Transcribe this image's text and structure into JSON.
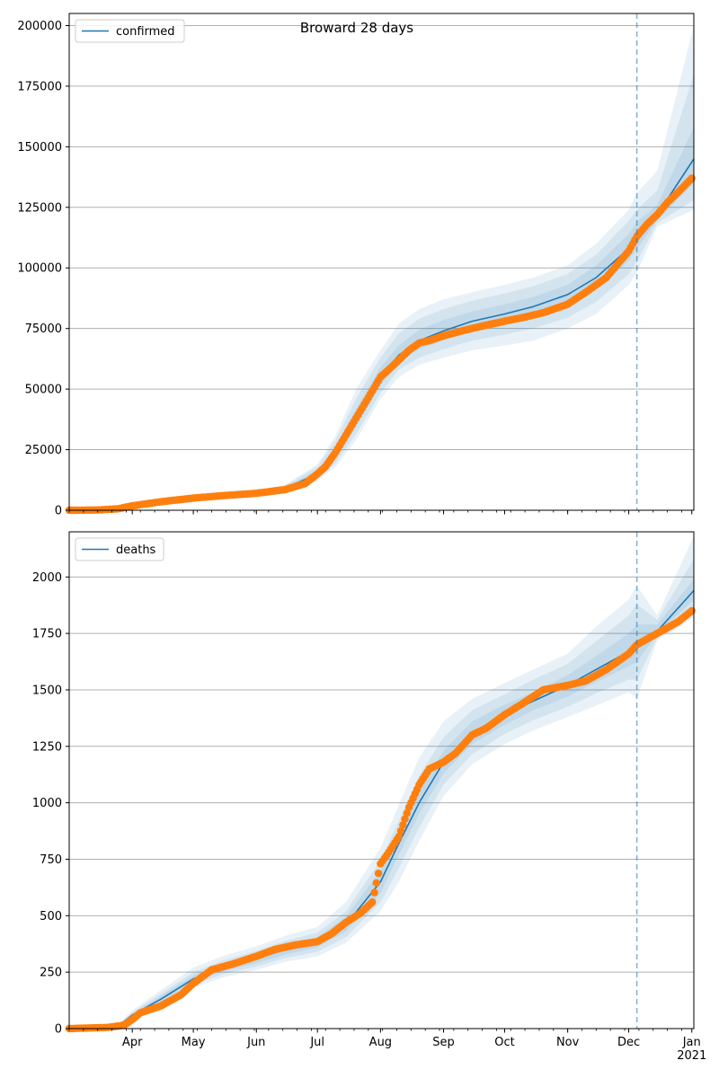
{
  "figure": {
    "title": "Broward 28 days"
  },
  "colors": {
    "model": "#1f77b4",
    "observed": "#ff7f0e",
    "band": "#1f77b4",
    "grid": "#b0b0b0",
    "forecast_line": "#1f77b4"
  },
  "chart_data": [
    {
      "type": "line",
      "title": "Broward 28 days",
      "legend": {
        "label": "confirmed",
        "placement": "top-left"
      },
      "xlabel": "",
      "ylabel": "",
      "x_range": [
        "2020-03-01",
        "2021-01-02"
      ],
      "ylim": [
        0,
        205000
      ],
      "yticks": [
        0,
        25000,
        50000,
        75000,
        100000,
        125000,
        150000,
        175000,
        200000
      ],
      "ytick_labels": [
        "0",
        "25000",
        "50000",
        "75000",
        "100000",
        "125000",
        "150000",
        "175000",
        "200000"
      ],
      "grid": "horizontal",
      "forecast_start": "2020-12-05",
      "model_mean": {
        "x": [
          "2020-03-01",
          "2020-03-20",
          "2020-04-01",
          "2020-04-15",
          "2020-05-01",
          "2020-05-15",
          "2020-06-01",
          "2020-06-15",
          "2020-07-01",
          "2020-07-10",
          "2020-07-20",
          "2020-08-01",
          "2020-08-10",
          "2020-08-20",
          "2020-09-01",
          "2020-09-15",
          "2020-10-01",
          "2020-10-15",
          "2020-11-01",
          "2020-11-15",
          "2020-12-01",
          "2020-12-05",
          "2020-12-15",
          "2021-01-02"
        ],
        "y": [
          0,
          300,
          2000,
          3500,
          5000,
          6000,
          7000,
          9000,
          15000,
          24000,
          38000,
          55000,
          64000,
          70000,
          74000,
          78000,
          81000,
          84000,
          89000,
          96000,
          108000,
          113000,
          122000,
          145000
        ]
      },
      "bands": [
        {
          "lower": [
            0,
            100,
            1500,
            2800,
            4200,
            5200,
            6200,
            7800,
            12000,
            18000,
            29000,
            46000,
            55000,
            60000,
            63000,
            66000,
            68000,
            70000,
            75000,
            81000,
            93000,
            98000,
            117000,
            124000
          ],
          "upper": [
            0,
            600,
            2600,
            4200,
            5900,
            7000,
            8200,
            10500,
            19000,
            31000,
            50000,
            66000,
            77000,
            83000,
            87000,
            90000,
            93000,
            96000,
            101000,
            110000,
            124000,
            131000,
            140000,
            200000
          ]
        },
        {
          "lower": [
            0,
            150,
            1650,
            3000,
            4450,
            5450,
            6450,
            8100,
            12800,
            19500,
            31500,
            48500,
            58000,
            63000,
            66500,
            70000,
            72500,
            75000,
            79500,
            86000,
            97500,
            102500,
            118500,
            128000
          ],
          "upper": [
            0,
            500,
            2450,
            4000,
            5600,
            6700,
            7800,
            10000,
            18000,
            29000,
            46000,
            63000,
            73000,
            79000,
            83000,
            86500,
            89500,
            92500,
            97500,
            105500,
            119500,
            124000,
            132000,
            180000
          ]
        },
        {
          "lower": [
            0,
            200,
            1800,
            3200,
            4700,
            5700,
            6700,
            8500,
            13800,
            21500,
            34500,
            51500,
            61000,
            66500,
            70000,
            74000,
            77000,
            80000,
            84500,
            91000,
            103000,
            108000,
            119500,
            135000
          ],
          "upper": [
            0,
            400,
            2250,
            3800,
            5300,
            6350,
            7400,
            9500,
            16500,
            26500,
            42000,
            59000,
            68000,
            74500,
            78500,
            82000,
            85000,
            88000,
            93000,
            101000,
            114000,
            119000,
            126000,
            158000
          ]
        }
      ],
      "observed": {
        "x": [
          "2020-03-01",
          "2020-03-15",
          "2020-03-25",
          "2020-04-01",
          "2020-04-15",
          "2020-05-01",
          "2020-05-15",
          "2020-06-01",
          "2020-06-15",
          "2020-06-25",
          "2020-07-01",
          "2020-07-05",
          "2020-07-10",
          "2020-07-15",
          "2020-07-20",
          "2020-07-25",
          "2020-08-01",
          "2020-08-05",
          "2020-08-10",
          "2020-08-15",
          "2020-08-20",
          "2020-08-25",
          "2020-09-01",
          "2020-09-10",
          "2020-09-20",
          "2020-10-01",
          "2020-10-10",
          "2020-10-20",
          "2020-11-01",
          "2020-11-10",
          "2020-11-20",
          "2020-12-01",
          "2020-12-05",
          "2020-12-10",
          "2020-12-15",
          "2020-12-20",
          "2020-12-25",
          "2021-01-01"
        ],
        "y": [
          0,
          100,
          600,
          1800,
          3500,
          5000,
          6000,
          7000,
          8500,
          11000,
          15000,
          18000,
          24000,
          31000,
          38000,
          45000,
          55000,
          58000,
          62000,
          66000,
          69000,
          70000,
          72000,
          74000,
          76000,
          78000,
          79500,
          81500,
          85000,
          90000,
          96000,
          107000,
          113000,
          118000,
          122000,
          127000,
          131000,
          137000
        ]
      }
    },
    {
      "type": "line",
      "title": "",
      "legend": {
        "label": "deaths",
        "placement": "top-left"
      },
      "xlabel": "",
      "ylabel": "",
      "x_range": [
        "2020-03-01",
        "2021-01-02"
      ],
      "ylim": [
        0,
        2200
      ],
      "yticks": [
        0,
        250,
        500,
        750,
        1000,
        1250,
        1500,
        1750,
        2000
      ],
      "ytick_labels": [
        "0",
        "250",
        "500",
        "750",
        "1000",
        "1250",
        "1500",
        "1750",
        "2000"
      ],
      "xtick_labels": [
        "Apr",
        "May",
        "Jun",
        "Jul",
        "Aug",
        "Sep",
        "Oct",
        "Nov",
        "Dec",
        "Jan\n2021"
      ],
      "xtick_dates": [
        "2020-04-01",
        "2020-05-01",
        "2020-06-01",
        "2020-07-01",
        "2020-08-01",
        "2020-09-01",
        "2020-10-01",
        "2020-11-01",
        "2020-12-01",
        "2021-01-01"
      ],
      "grid": "horizontal",
      "forecast_start": "2020-12-05",
      "model_mean": {
        "x": [
          "2020-03-01",
          "2020-03-25",
          "2020-04-01",
          "2020-04-15",
          "2020-05-01",
          "2020-05-15",
          "2020-06-01",
          "2020-06-15",
          "2020-07-01",
          "2020-07-15",
          "2020-08-01",
          "2020-08-10",
          "2020-08-20",
          "2020-09-01",
          "2020-09-15",
          "2020-10-01",
          "2020-10-15",
          "2020-11-01",
          "2020-11-15",
          "2020-12-01",
          "2020-12-05",
          "2020-12-15",
          "2021-01-02"
        ],
        "y": [
          0,
          10,
          60,
          130,
          220,
          270,
          310,
          350,
          385,
          460,
          650,
          820,
          1000,
          1180,
          1310,
          1390,
          1450,
          1520,
          1590,
          1670,
          1700,
          1760,
          1940
        ]
      },
      "bands": [
        {
          "lower": [
            0,
            5,
            40,
            100,
            180,
            225,
            260,
            295,
            320,
            380,
            520,
            650,
            830,
            1030,
            1170,
            1260,
            1320,
            1380,
            1430,
            1490,
            1460,
            1720,
            1820
          ],
          "upper": [
            0,
            20,
            80,
            170,
            270,
            320,
            365,
            410,
            450,
            560,
            800,
            990,
            1200,
            1360,
            1460,
            1530,
            1590,
            1660,
            1780,
            1900,
            1960,
            1830,
            2180
          ]
        },
        {
          "lower": [
            0,
            7,
            46,
            110,
            195,
            240,
            275,
            312,
            340,
            405,
            560,
            710,
            890,
            1080,
            1215,
            1305,
            1365,
            1425,
            1485,
            1545,
            1545,
            1730,
            1850
          ],
          "upper": [
            0,
            16,
            72,
            155,
            250,
            300,
            345,
            388,
            425,
            520,
            745,
            920,
            1120,
            1290,
            1410,
            1480,
            1545,
            1615,
            1715,
            1830,
            1880,
            1810,
            2080
          ]
        },
        {
          "lower": [
            0,
            8,
            52,
            118,
            205,
            252,
            290,
            328,
            360,
            430,
            600,
            770,
            950,
            1130,
            1260,
            1345,
            1410,
            1470,
            1535,
            1605,
            1625,
            1745,
            1900
          ],
          "upper": [
            0,
            13,
            66,
            145,
            235,
            285,
            330,
            370,
            405,
            495,
            700,
            870,
            1055,
            1230,
            1360,
            1435,
            1490,
            1565,
            1650,
            1750,
            1790,
            1790,
            1990
          ]
        }
      ],
      "observed": {
        "x": [
          "2020-03-01",
          "2020-03-20",
          "2020-03-28",
          "2020-04-01",
          "2020-04-05",
          "2020-04-15",
          "2020-04-25",
          "2020-05-01",
          "2020-05-10",
          "2020-05-20",
          "2020-06-01",
          "2020-06-10",
          "2020-06-20",
          "2020-07-01",
          "2020-07-08",
          "2020-07-15",
          "2020-07-22",
          "2020-07-28",
          "2020-08-01",
          "2020-08-05",
          "2020-08-10",
          "2020-08-15",
          "2020-08-20",
          "2020-08-25",
          "2020-09-01",
          "2020-09-07",
          "2020-09-15",
          "2020-09-22",
          "2020-10-01",
          "2020-10-10",
          "2020-10-20",
          "2020-11-01",
          "2020-11-10",
          "2020-11-20",
          "2020-12-01",
          "2020-12-05",
          "2020-12-15",
          "2020-12-25",
          "2021-01-01"
        ],
        "y": [
          0,
          5,
          15,
          40,
          70,
          100,
          150,
          200,
          260,
          285,
          320,
          350,
          370,
          385,
          420,
          470,
          510,
          560,
          730,
          780,
          850,
          980,
          1080,
          1150,
          1180,
          1220,
          1300,
          1330,
          1390,
          1440,
          1500,
          1520,
          1540,
          1590,
          1660,
          1700,
          1750,
          1800,
          1850
        ]
      }
    }
  ]
}
